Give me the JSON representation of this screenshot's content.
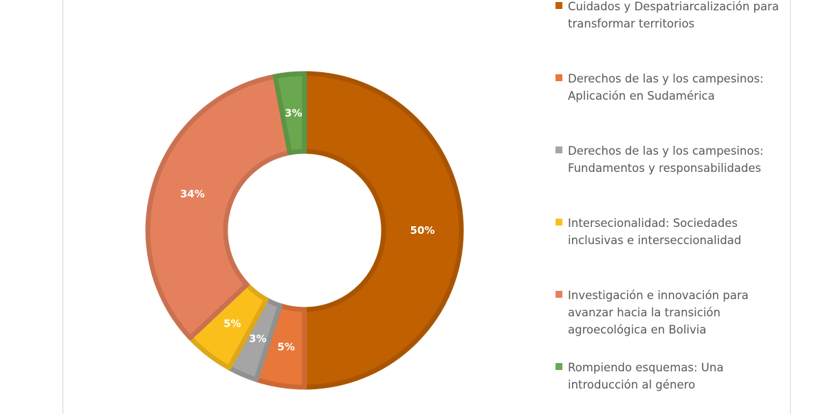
{
  "chart_data": {
    "type": "pie",
    "donut": true,
    "title": "",
    "legend_position": "right",
    "slices": [
      {
        "label": "Cuidados y Despatriarcalización para transformar territorios",
        "value": 50,
        "display": "50%",
        "color": "#c06000"
      },
      {
        "label": "Derechos de las y los campesinos: Aplicación en Sudamérica",
        "value": 5,
        "display": "5%",
        "color": "#e8773a"
      },
      {
        "label": "Derechos de las y los campesinos: Fundamentos y responsabilidades",
        "value": 3,
        "display": "3%",
        "color": "#a5a5a5"
      },
      {
        "label": "Intersecionalidad: Sociedades inclusivas e interseccionalidad",
        "value": 5,
        "display": "5%",
        "color": "#fbbf1c"
      },
      {
        "label": "Investigación e innovación para avanzar hacia la transición agroecológica en Bolivia",
        "value": 34,
        "display": "34%",
        "color": "#e5805d"
      },
      {
        "label": "Rompiendo esquemas: Una introducción al género",
        "value": 3,
        "display": "3%",
        "color": "#6aa84f"
      }
    ]
  }
}
